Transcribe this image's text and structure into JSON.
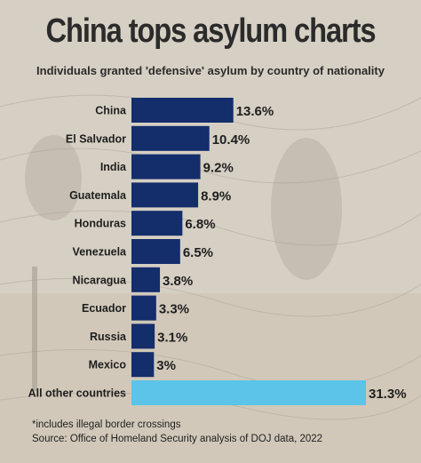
{
  "title": "China tops asylum charts",
  "subtitle": "Individuals granted 'defensive' asylum by country of nationality",
  "footnote": "*includes illegal border crossings",
  "source": "Source: Office of Homeland Security analysis of DOJ data, 2022",
  "colors": {
    "bar": "#142d6b",
    "highlight_bar": "#5bc4e8",
    "background": "#d9d2c6",
    "text": "#1f1f1f"
  },
  "chart_data": {
    "type": "bar",
    "orientation": "horizontal",
    "categories": [
      "China",
      "El Salvador",
      "India",
      "Guatemala",
      "Honduras",
      "Venezuela",
      "Nicaragua",
      "Ecuador",
      "Russia",
      "Mexico",
      "All other countries"
    ],
    "values": [
      13.6,
      10.4,
      9.2,
      8.9,
      6.8,
      6.5,
      3.8,
      3.3,
      3.1,
      3.0,
      31.3
    ],
    "labels": [
      "13.6%",
      "10.4%",
      "9.2%",
      "8.9%",
      "6.8%",
      "6.5%",
      "3.8%",
      "3.3%",
      "3.1%",
      "3%",
      "31.3%"
    ],
    "unit": "%",
    "highlight_category": "All other countries",
    "grid": false,
    "legend": "none"
  }
}
